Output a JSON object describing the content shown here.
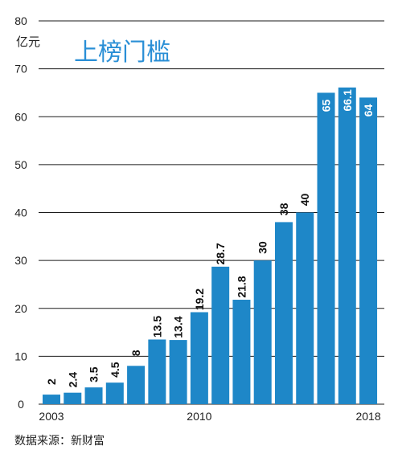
{
  "chart_data": {
    "type": "bar",
    "title": "上榜门槛",
    "ylabel": "亿元",
    "xlabel": "",
    "ylim": [
      0,
      80
    ],
    "yticks": [
      0,
      10,
      20,
      30,
      40,
      50,
      60,
      70,
      80
    ],
    "categories": [
      "2003",
      "2004",
      "2005",
      "2006",
      "2007",
      "2008",
      "2009",
      "2010",
      "2011",
      "2012",
      "2013",
      "2014",
      "2015",
      "2016",
      "2017",
      "2018"
    ],
    "x_tick_labels": [
      {
        "category": "2003",
        "label": "2003"
      },
      {
        "category": "2010",
        "label": "2010"
      },
      {
        "category": "2018",
        "label": "2018"
      }
    ],
    "values": [
      2,
      2.4,
      3.5,
      4.5,
      8,
      13.5,
      13.4,
      19.2,
      28.7,
      21.8,
      30,
      38,
      40,
      65,
      66.1,
      64
    ],
    "data_labels": [
      "2",
      "2.4",
      "3.5",
      "4.5",
      "8",
      "13.5",
      "13.4",
      "19.2",
      "28.7",
      "21.8",
      "30",
      "38",
      "40",
      "65",
      "66.1",
      "64"
    ],
    "bar_color": "#1e87c8",
    "title_color": "#2a8fd6",
    "grid": true,
    "source": "数据来源：新财富"
  }
}
